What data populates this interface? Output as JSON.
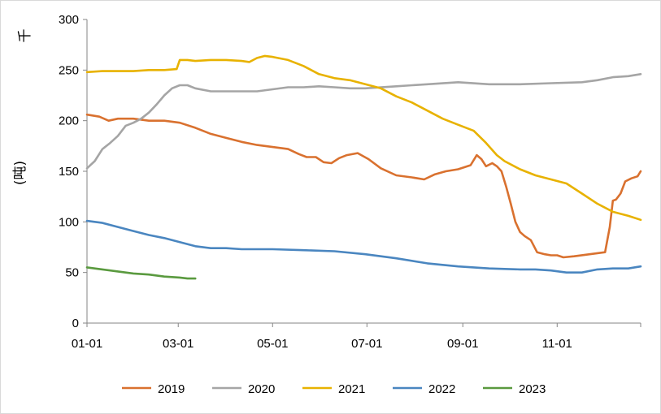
{
  "chart_data": {
    "type": "line",
    "title": "",
    "ylabel_unit_top": "千",
    "ylabel_unit_paren": "(吨)",
    "xlabel": "",
    "x_ticks": [
      "01-01",
      "03-01",
      "05-01",
      "07-01",
      "09-01",
      "11-01"
    ],
    "x_tick_days": [
      0,
      59,
      120,
      181,
      243,
      304
    ],
    "x_range_days": [
      0,
      358
    ],
    "y_ticks": [
      "0",
      "50",
      "100",
      "150",
      "200",
      "250",
      "300"
    ],
    "ylim": [
      0,
      300
    ],
    "grid": false,
    "legend_position": "bottom",
    "series": [
      {
        "name": "2019",
        "color": "#d9712f",
        "x_days": [
          0,
          8,
          14,
          20,
          30,
          40,
          50,
          60,
          70,
          80,
          90,
          100,
          110,
          120,
          130,
          137,
          142,
          148,
          153,
          158,
          163,
          168,
          175,
          182,
          190,
          200,
          210,
          218,
          225,
          232,
          240,
          248,
          252,
          255,
          258,
          262,
          265,
          268,
          271,
          274,
          277,
          280,
          283,
          287,
          291,
          296,
          300,
          304,
          308,
          315,
          325,
          335,
          338,
          340,
          342,
          345,
          348,
          352,
          356,
          358
        ],
        "values": [
          206,
          204,
          200,
          202,
          202,
          200,
          200,
          198,
          193,
          187,
          183,
          179,
          176,
          174,
          172,
          167,
          164,
          164,
          159,
          158,
          163,
          166,
          168,
          162,
          153,
          146,
          144,
          142,
          147,
          150,
          152,
          156,
          166,
          162,
          155,
          158,
          155,
          150,
          135,
          118,
          100,
          90,
          86,
          82,
          70,
          68,
          67,
          67,
          65,
          66,
          68,
          70,
          95,
          121,
          122,
          128,
          140,
          143,
          145,
          150
        ]
      },
      {
        "name": "2020",
        "color": "#a5a5a5",
        "x_days": [
          0,
          5,
          10,
          15,
          20,
          25,
          30,
          35,
          40,
          45,
          50,
          55,
          60,
          65,
          70,
          80,
          90,
          100,
          110,
          120,
          130,
          140,
          150,
          160,
          170,
          180,
          200,
          220,
          240,
          260,
          280,
          300,
          320,
          330,
          340,
          350,
          358
        ],
        "values": [
          153,
          160,
          172,
          178,
          185,
          195,
          198,
          202,
          208,
          216,
          225,
          232,
          235,
          235,
          232,
          229,
          229,
          229,
          229,
          231,
          233,
          233,
          234,
          233,
          232,
          232,
          234,
          236,
          238,
          236,
          236,
          237,
          238,
          240,
          243,
          244,
          246
        ]
      },
      {
        "name": "2021",
        "color": "#e8b200",
        "x_days": [
          0,
          10,
          20,
          30,
          40,
          50,
          58,
          60,
          65,
          70,
          80,
          90,
          100,
          105,
          110,
          115,
          120,
          130,
          140,
          150,
          160,
          170,
          180,
          190,
          200,
          210,
          220,
          230,
          240,
          250,
          258,
          265,
          270,
          280,
          290,
          300,
          310,
          320,
          330,
          340,
          350,
          358
        ],
        "values": [
          248,
          249,
          249,
          249,
          250,
          250,
          251,
          260,
          260,
          259,
          260,
          260,
          259,
          258,
          262,
          264,
          263,
          260,
          254,
          246,
          242,
          240,
          236,
          232,
          224,
          218,
          210,
          202,
          196,
          190,
          178,
          166,
          160,
          152,
          146,
          142,
          138,
          128,
          118,
          110,
          106,
          102
        ]
      },
      {
        "name": "2022",
        "color": "#4a86c0",
        "x_days": [
          0,
          10,
          20,
          30,
          40,
          50,
          60,
          70,
          80,
          90,
          100,
          110,
          120,
          140,
          160,
          180,
          200,
          220,
          240,
          260,
          280,
          290,
          300,
          310,
          320,
          330,
          340,
          350,
          358
        ],
        "values": [
          101,
          99,
          95,
          91,
          87,
          84,
          80,
          76,
          74,
          74,
          73,
          73,
          73,
          72,
          71,
          68,
          64,
          59,
          56,
          54,
          53,
          53,
          52,
          50,
          50,
          53,
          54,
          54,
          56
        ]
      },
      {
        "name": "2023",
        "color": "#5a9a3f",
        "x_days": [
          0,
          10,
          20,
          30,
          40,
          50,
          60,
          65,
          70
        ],
        "values": [
          55,
          53,
          51,
          49,
          48,
          46,
          45,
          44,
          44
        ]
      }
    ]
  }
}
